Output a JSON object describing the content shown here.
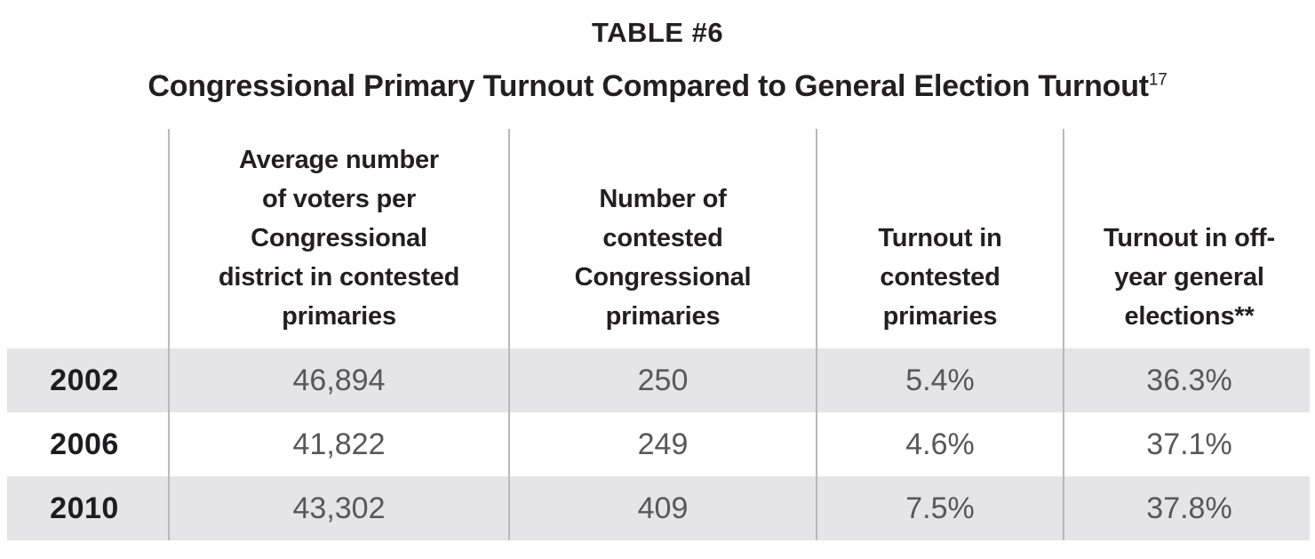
{
  "title": "TABLE #6",
  "subtitle": "Congressional Primary Turnout Compared to General Election Turnout",
  "subtitle_footnote_ref": "17",
  "table": {
    "columns": [
      "Average number\nof voters per\nCongressional\ndistrict in contested\nprimaries",
      "Number of\ncontested\nCongressional\nprimaries",
      "Turnout in\ncontested\nprimaries",
      "Turnout in off-\nyear general\nelections**"
    ],
    "rows": [
      {
        "year": "2002",
        "values": [
          "46,894",
          "250",
          "5.4%",
          "36.3%"
        ]
      },
      {
        "year": "2006",
        "values": [
          "41,822",
          "249",
          "4.6%",
          "37.1%"
        ]
      },
      {
        "year": "2010",
        "values": [
          "43,302",
          "409",
          "7.5%",
          "37.8%"
        ]
      }
    ]
  },
  "colors": {
    "background": "#ffffff",
    "text_primary": "#231f20",
    "text_data": "#58585a",
    "row_stripe": "#e5e4e6",
    "column_divider": "#b9b9bb"
  },
  "chart_data": {
    "type": "table",
    "title": "TABLE #6",
    "subtitle": "Congressional Primary Turnout Compared to General Election Turnout",
    "footnote_reference": "17",
    "row_labels": [
      "2002",
      "2006",
      "2010"
    ],
    "column_labels": [
      "Average number of voters per Congressional district in contested primaries",
      "Number of contested Congressional primaries",
      "Turnout in contested primaries",
      "Turnout in off-year general elections**"
    ],
    "rows": [
      [
        "46,894",
        "250",
        "5.4%",
        "36.3%"
      ],
      [
        "41,822",
        "249",
        "4.6%",
        "37.1%"
      ],
      [
        "43,302",
        "409",
        "7.5%",
        "37.8%"
      ]
    ]
  }
}
